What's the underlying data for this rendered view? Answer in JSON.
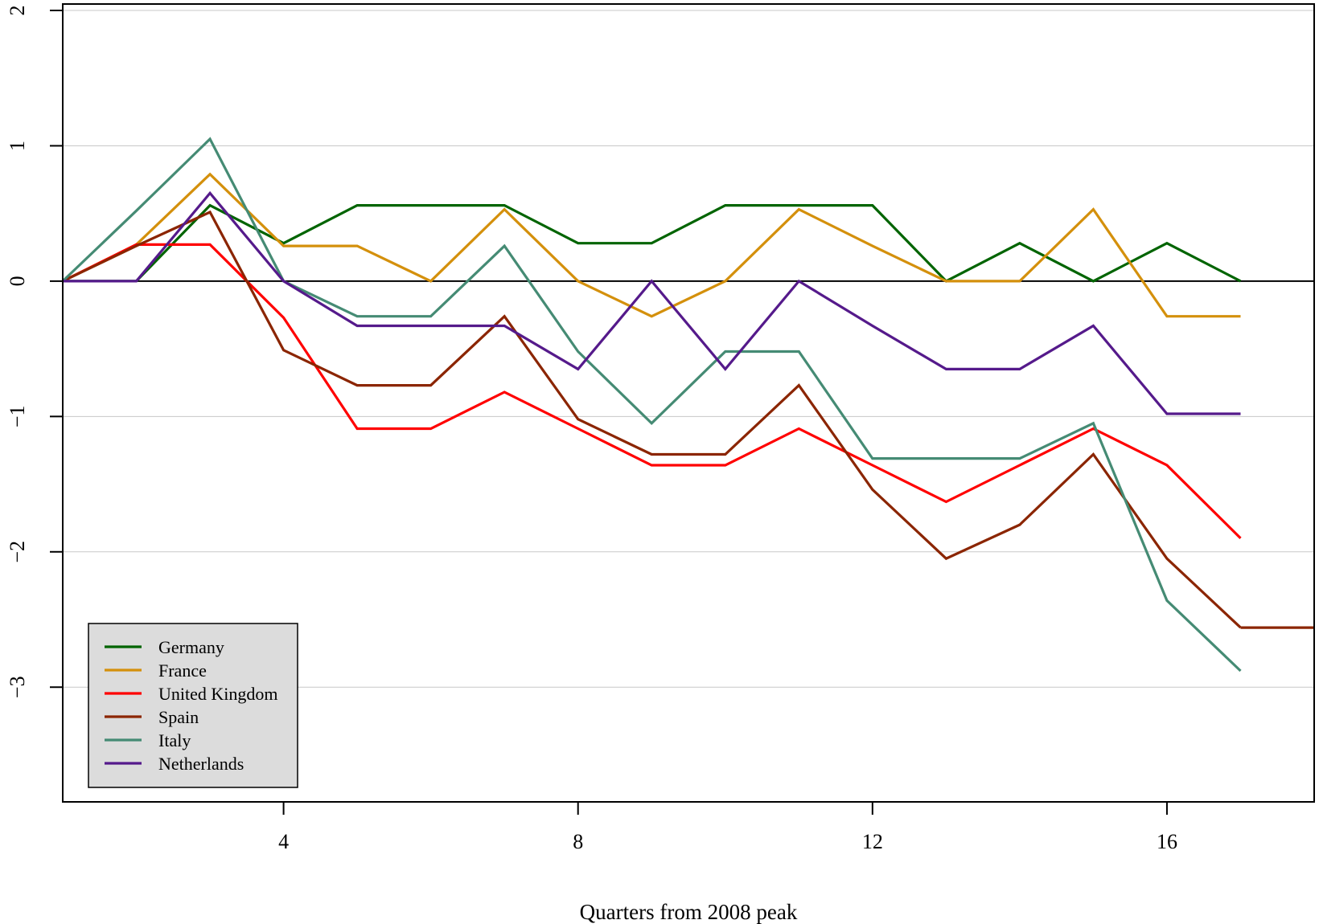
{
  "chart_data": {
    "type": "line",
    "title": "",
    "xlabel": "Quarters from 2008 peak",
    "ylabel": "",
    "xlim": [
      1,
      18
    ],
    "ylim": [
      -3.8,
      2
    ],
    "x_ticks": [
      4,
      8,
      12,
      16
    ],
    "y_ticks": [
      -3,
      -2,
      -1,
      0,
      1,
      2
    ],
    "grid": "horizontal",
    "zero_line": 0,
    "legend_position": "bottom-left",
    "x": [
      1,
      2,
      3,
      4,
      5,
      6,
      7,
      8,
      9,
      10,
      11,
      12,
      13,
      14,
      15,
      16,
      17
    ],
    "series": [
      {
        "name": "Germany",
        "color": "#006400",
        "values": [
          0,
          0,
          0.56,
          0.28,
          0.56,
          0.56,
          0.56,
          0.28,
          0.28,
          0.56,
          0.56,
          0.56,
          0,
          0.28,
          0,
          0.28,
          0
        ]
      },
      {
        "name": "France",
        "color": "#d4900c",
        "values": [
          0,
          0.27,
          0.79,
          0.26,
          0.26,
          0,
          0.53,
          0,
          -0.26,
          0,
          0.53,
          0.26,
          0,
          0,
          0.53,
          -0.26,
          -0.26
        ]
      },
      {
        "name": "United Kingdom",
        "color": "#ff0000",
        "values": [
          0,
          0.27,
          0.27,
          -0.27,
          -1.09,
          -1.09,
          -0.82,
          -1.09,
          -1.36,
          -1.36,
          -1.09,
          -1.36,
          -1.63,
          -1.36,
          -1.09,
          -1.36,
          -1.9
        ]
      },
      {
        "name": "Spain",
        "color": "#8b2500",
        "values": [
          0,
          0.26,
          0.51,
          -0.51,
          -0.77,
          -0.77,
          -0.26,
          -1.02,
          -1.28,
          -1.28,
          -0.77,
          -1.54,
          -2.05,
          -1.8,
          -1.28,
          -2.05,
          -2.56
        ]
      },
      {
        "name": "Italy",
        "color": "#458b74",
        "values": [
          0,
          0.52,
          1.05,
          0,
          -0.26,
          -0.26,
          0.26,
          -0.52,
          -1.05,
          -0.52,
          -0.52,
          -1.31,
          -1.31,
          -1.31,
          -1.05,
          -2.36,
          -2.88
        ]
      },
      {
        "name": "Netherlands",
        "color": "#551a8b",
        "values": [
          0,
          0,
          0.65,
          0,
          -0.33,
          -0.33,
          -0.33,
          -0.65,
          0,
          -0.65,
          0,
          -0.33,
          -0.65,
          -0.65,
          -0.33,
          -0.98,
          -0.98
        ]
      }
    ]
  }
}
